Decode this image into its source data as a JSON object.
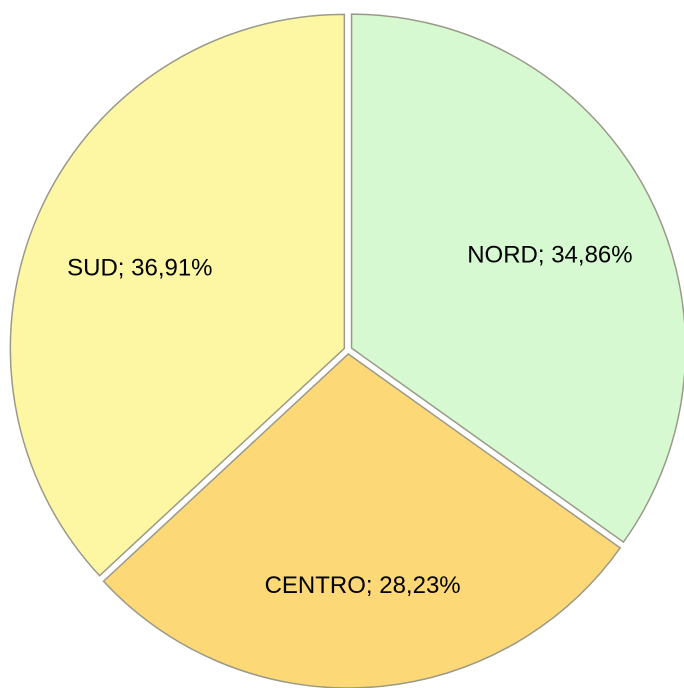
{
  "chart_data": {
    "type": "pie",
    "values": [
      34.86,
      28.23,
      36.91
    ],
    "value_labels": [
      "NORD; 34,86%",
      "CENTRO; 28,23%",
      "SUD; 36,91%"
    ],
    "colors": [
      "#d6f9d2",
      "#fdd877",
      "#fdf7a3"
    ]
  }
}
